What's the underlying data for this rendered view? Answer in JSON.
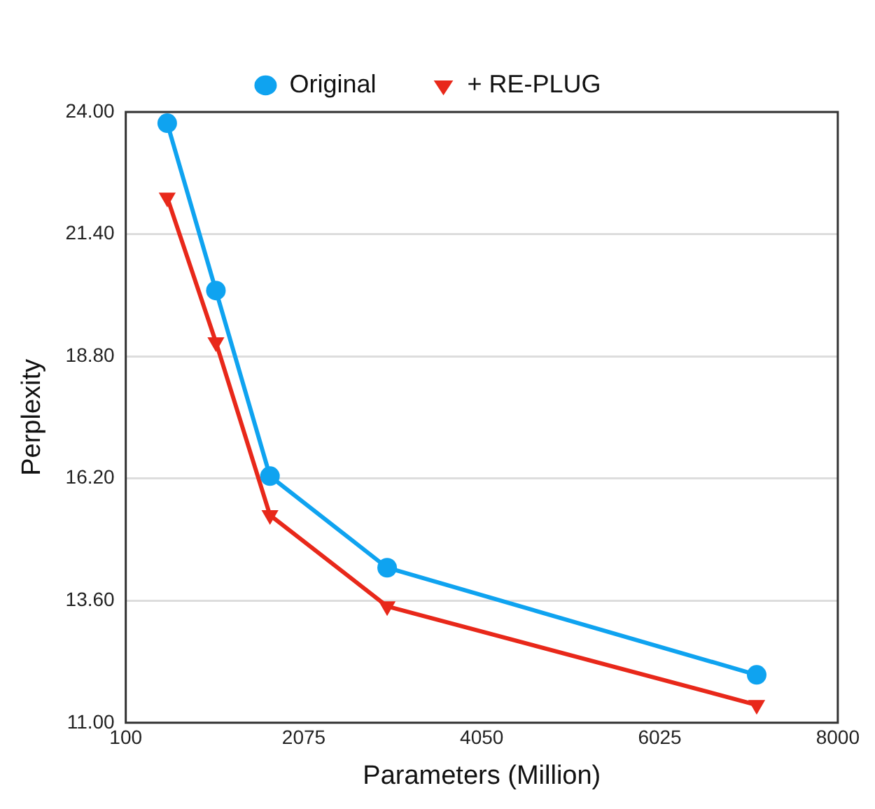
{
  "chart_data": {
    "type": "line",
    "xlabel": "Parameters (Million)",
    "ylabel": "Perplexity",
    "x": [
      560,
      1100,
      1700,
      3000,
      7100
    ],
    "series": [
      {
        "name": "Original",
        "color": "#0fa3f0",
        "marker": "circle",
        "values": [
          23.76,
          20.2,
          16.25,
          14.3,
          12.02
        ]
      },
      {
        "name": "+ RE-PLUG",
        "color": "#e8281a",
        "marker": "triangle",
        "values": [
          22.18,
          19.1,
          15.42,
          13.48,
          11.38
        ]
      }
    ],
    "xlim": [
      100,
      8000
    ],
    "xticks": [
      100,
      2075,
      4050,
      6025,
      8000
    ],
    "ylim": [
      11,
      24
    ],
    "yticks": [
      {
        "value": 11,
        "label": "11.00"
      },
      {
        "value": 13.6,
        "label": "13.60"
      },
      {
        "value": 16.2,
        "label": "16.20"
      },
      {
        "value": 18.8,
        "label": "18.80"
      },
      {
        "value": 21.4,
        "label": "21.40"
      },
      {
        "value": 24,
        "label": "24.00"
      }
    ],
    "grid": "y",
    "legend": "top",
    "line_style": "solid"
  }
}
